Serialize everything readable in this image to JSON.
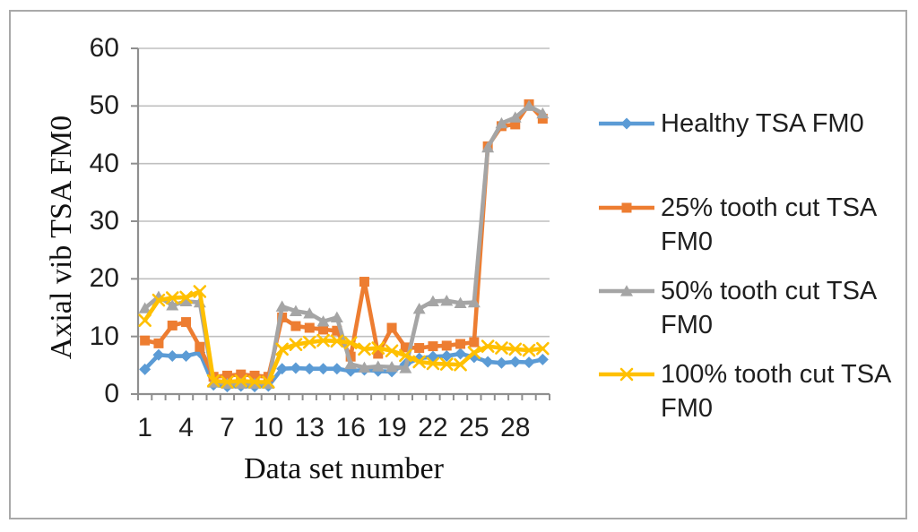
{
  "figure": {
    "background": "#ffffff",
    "border_color": "#a9a9a9"
  },
  "chart_data": {
    "type": "line",
    "title": "",
    "xlabel": "Data set number",
    "ylabel": "Axial vib TSA FM0",
    "x": [
      1,
      2,
      3,
      4,
      5,
      6,
      7,
      8,
      9,
      10,
      11,
      12,
      13,
      14,
      15,
      16,
      17,
      18,
      19,
      20,
      21,
      22,
      23,
      24,
      25,
      26,
      27,
      28,
      29,
      30
    ],
    "x_tick_labels": [
      1,
      4,
      7,
      10,
      13,
      16,
      19,
      22,
      25,
      28
    ],
    "y_ticks": [
      0,
      10,
      20,
      30,
      40,
      50,
      60
    ],
    "ylim": [
      0,
      60
    ],
    "grid": true,
    "legend_position": "right",
    "grid_color": "#bfbfbf",
    "axis_color": "#8f8f8f",
    "text_color": "#1f1f1f",
    "series": [
      {
        "name": "Healthy TSA FM0",
        "marker": "diamond",
        "color": "#5B9BD5",
        "values": [
          4.3,
          6.8,
          6.6,
          6.6,
          7.2,
          1.6,
          1.3,
          1.4,
          1.3,
          1.4,
          4.4,
          4.5,
          4.4,
          4.4,
          4.4,
          4.0,
          4.2,
          4.0,
          3.9,
          5.2,
          6.2,
          6.5,
          6.6,
          7.0,
          6.4,
          5.6,
          5.4,
          5.6,
          5.5,
          6.0
        ]
      },
      {
        "name": "25% tooth cut TSA FM0",
        "marker": "square",
        "color": "#ED7D31",
        "values": [
          9.3,
          8.8,
          11.9,
          12.5,
          8.2,
          3.0,
          3.2,
          3.4,
          3.2,
          3.0,
          13.3,
          11.8,
          11.5,
          11.2,
          11.0,
          6.5,
          19.5,
          7.0,
          11.5,
          8.1,
          8.0,
          8.3,
          8.4,
          8.7,
          9.0,
          43.0,
          46.5,
          46.8,
          50.3,
          47.8
        ]
      },
      {
        "name": "50% tooth cut TSA FM0",
        "marker": "triangle",
        "color": "#A5A5A5",
        "values": [
          14.9,
          16.9,
          15.4,
          16.1,
          15.9,
          2.0,
          1.8,
          1.8,
          1.8,
          1.8,
          15.2,
          14.4,
          14.0,
          12.6,
          13.3,
          5.2,
          4.6,
          4.8,
          4.7,
          4.5,
          14.8,
          16.1,
          16.2,
          15.8,
          15.9,
          42.8,
          47.0,
          48.0,
          50.0,
          48.7
        ]
      },
      {
        "name": "100% tooth cut TSA FM0",
        "marker": "x",
        "color": "#FFC000",
        "values": [
          12.8,
          16.3,
          16.7,
          16.8,
          17.8,
          2.3,
          2.1,
          2.3,
          2.1,
          2.1,
          7.8,
          8.6,
          9.0,
          9.3,
          9.2,
          8.9,
          7.8,
          8.0,
          7.5,
          6.7,
          5.6,
          5.3,
          5.2,
          5.1,
          7.2,
          8.3,
          8.0,
          7.8,
          7.6,
          7.9
        ]
      }
    ]
  }
}
